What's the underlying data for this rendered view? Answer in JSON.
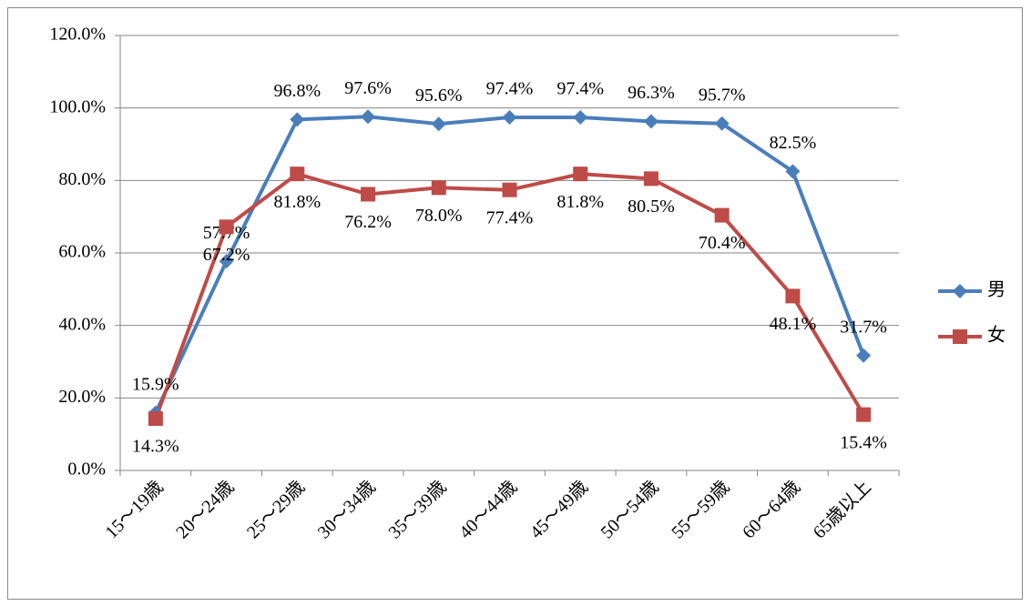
{
  "chart_data": {
    "type": "line",
    "categories": [
      "15～19歳",
      "20～24歳",
      "25～29歳",
      "30～34歳",
      "35～39歳",
      "40～44歳",
      "45～49歳",
      "50～54歳",
      "55～59歳",
      "60～64歳",
      "65歳以上"
    ],
    "series": [
      {
        "name": "男",
        "color": "#4a7ebb",
        "marker": "diamond",
        "values": [
          15.9,
          57.7,
          96.8,
          97.6,
          95.6,
          97.4,
          97.4,
          96.3,
          95.7,
          82.5,
          31.7
        ],
        "value_labels": [
          "15.9%",
          "57.7%",
          "96.8%",
          "97.6%",
          "95.6%",
          "97.4%",
          "97.4%",
          "96.3%",
          "95.7%",
          "82.5%",
          "31.7%"
        ]
      },
      {
        "name": "女",
        "color": "#be4b48",
        "marker": "square",
        "values": [
          14.3,
          67.2,
          81.8,
          76.2,
          78.0,
          77.4,
          81.8,
          80.5,
          70.4,
          48.1,
          15.4
        ],
        "value_labels": [
          "14.3%",
          "67.2%",
          "81.8%",
          "76.2%",
          "78.0%",
          "77.4%",
          "81.8%",
          "80.5%",
          "70.4%",
          "48.1%",
          "15.4%"
        ]
      }
    ],
    "ylim": [
      0,
      120
    ],
    "yticks": [
      {
        "value": 0,
        "label": "0.0%"
      },
      {
        "value": 20,
        "label": "20.0%"
      },
      {
        "value": 40,
        "label": "40.0%"
      },
      {
        "value": 60,
        "label": "60.0%"
      },
      {
        "value": 80,
        "label": "80.0%"
      },
      {
        "value": 100,
        "label": "100.0%"
      },
      {
        "value": 120,
        "label": "120.0%"
      }
    ],
    "grid": true,
    "legend": "right"
  }
}
